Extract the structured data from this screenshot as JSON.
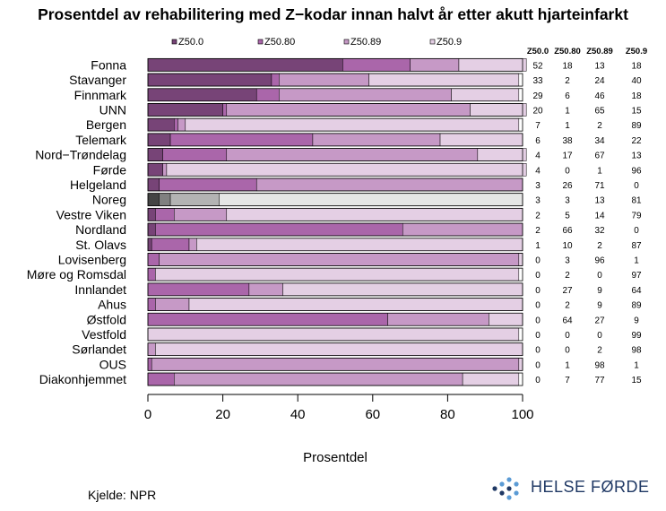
{
  "chart_data": {
    "type": "bar",
    "orientation": "horizontal",
    "stacked": true,
    "title": "Prosentdel av rehabilitering med Z−kodar innan halvt år etter akutt hjarteinfarkt",
    "xlabel": "Prosentdel",
    "xlim": [
      0,
      100
    ],
    "xticks": [
      "0",
      "20",
      "40",
      "60",
      "80",
      "100"
    ],
    "legend_position": "top",
    "categories": [
      "Fonna",
      "Stavanger",
      "Finnmark",
      "UNN",
      "Bergen",
      "Telemark",
      "Nord−Trøndelag",
      "Førde",
      "Helgeland",
      "Noreg",
      "Vestre Viken",
      "Nordland",
      "St. Olavs",
      "Lovisenberg",
      "Møre og Romsdal",
      "Innlandet",
      "Ahus",
      "Østfold",
      "Vestfold",
      "Sørlandet",
      "OUS",
      "Diakonhjemmet"
    ],
    "highlight_category": "Noreg",
    "series": [
      {
        "name": "Z50.0",
        "values": [
          52,
          33,
          29,
          20,
          7,
          6,
          4,
          4,
          3,
          3,
          2,
          2,
          1,
          0,
          0,
          0,
          0,
          0,
          0,
          0,
          0,
          0
        ]
      },
      {
        "name": "Z50.80",
        "values": [
          18,
          2,
          6,
          1,
          1,
          38,
          17,
          0,
          26,
          3,
          5,
          66,
          10,
          3,
          2,
          27,
          2,
          64,
          0,
          0,
          1,
          7
        ]
      },
      {
        "name": "Z50.89",
        "values": [
          13,
          24,
          46,
          65,
          2,
          34,
          67,
          1,
          71,
          13,
          14,
          32,
          2,
          96,
          0,
          9,
          9,
          27,
          0,
          2,
          98,
          77
        ]
      },
      {
        "name": "Z50.9",
        "values": [
          18,
          40,
          18,
          15,
          89,
          22,
          13,
          96,
          0,
          81,
          79,
          0,
          87,
          1,
          97,
          64,
          89,
          9,
          99,
          98,
          1,
          15
        ]
      }
    ],
    "colors": [
      "#774477",
      "#aa66aa",
      "#c699c6",
      "#e4cfe4"
    ],
    "highlight_colors": [
      "#444444",
      "#808080",
      "#b3b3b3",
      "#e6e6e6"
    ],
    "table_headers": [
      "Z50.0",
      "Z50.80",
      "Z50.89",
      "Z50.9"
    ]
  },
  "source": "Kjelde: NPR",
  "logo": {
    "text": "HELSE FØRDE"
  }
}
